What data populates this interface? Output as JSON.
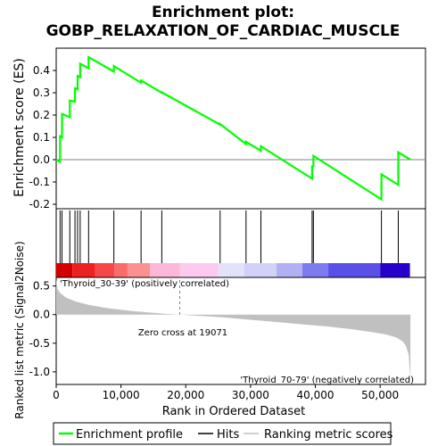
{
  "title": "Enrichment plot:\nGOBP_RELAXATION_OF_CARDIAC_MUSCLE",
  "title_lines": [
    "Enrichment plot:",
    "GOBP_RELAXATION_OF_CARDIAC_MUSCLE"
  ],
  "colors": {
    "es_line": "#00ff00",
    "hits": "#000000",
    "metric_fill": "#c0c0c0",
    "zero_line": "#808080",
    "pos_label": "#cc0000",
    "neg_label": "#0000cc"
  },
  "es_panel": {
    "ylabel": "Enrichment score (ES)",
    "ylim": [
      -0.22,
      0.5
    ],
    "yticks": [
      -0.2,
      -0.1,
      0.0,
      0.1,
      0.2,
      0.3,
      0.4
    ]
  },
  "metric_panel": {
    "ylabel": "Ranked list metric (Signal2Noise)",
    "ylim": [
      -1.22,
      0.65
    ],
    "yticks": [
      -1.0,
      -0.5,
      0.0,
      0.5
    ],
    "zero_cross_text": "Zero cross at 19071",
    "zero_cross": 19071,
    "pos_label": "'Thyroid_30-39' (positively correlated)",
    "neg_label": "'Thyroid_70-79' (negatively correlated)"
  },
  "xaxis": {
    "label": "Rank in Ordered Dataset",
    "xlim": [
      0,
      57000
    ],
    "ticks": [
      0,
      10000,
      20000,
      30000,
      40000,
      50000
    ],
    "tick_labels": [
      "0",
      "10,000",
      "20,000",
      "30,000",
      "40,000",
      "50,000"
    ]
  },
  "legend": {
    "items": [
      {
        "label": "Enrichment profile",
        "style": "green-line"
      },
      {
        "label": "Hits",
        "style": "black-line"
      },
      {
        "label": "Ranking metric scores",
        "style": "gray-line"
      }
    ]
  },
  "heatmap_bands": [
    {
      "start": 0,
      "end": 2500,
      "color": "#d40000"
    },
    {
      "start": 2500,
      "end": 6000,
      "color": "#ee2020"
    },
    {
      "start": 6000,
      "end": 9000,
      "color": "#f64848"
    },
    {
      "start": 9000,
      "end": 11000,
      "color": "#f86c6c"
    },
    {
      "start": 11000,
      "end": 14500,
      "color": "#fa9090"
    },
    {
      "start": 14500,
      "end": 19071,
      "color": "#fbb8d8"
    },
    {
      "start": 19071,
      "end": 25000,
      "color": "#fccaee"
    },
    {
      "start": 25000,
      "end": 29000,
      "color": "#e2e2f8"
    },
    {
      "start": 29000,
      "end": 34000,
      "color": "#d2d2f8"
    },
    {
      "start": 34000,
      "end": 38000,
      "color": "#b0b0f2"
    },
    {
      "start": 38000,
      "end": 42000,
      "color": "#7c7cf0"
    },
    {
      "start": 42000,
      "end": 50000,
      "color": "#5a50e8"
    },
    {
      "start": 50000,
      "end": 54600,
      "color": "#2800cc"
    }
  ],
  "chart_data": {
    "type": "line",
    "title": "Enrichment plot: GOBP_RELAXATION_OF_CARDIAC_MUSCLE",
    "xlabel": "Rank in Ordered Dataset",
    "ylabel": "Enrichment score (ES)",
    "n_genes": 54675,
    "hits": [
      600,
      900,
      2100,
      2900,
      3300,
      3700,
      5000,
      8900,
      13100,
      16300,
      25300,
      29300,
      31600,
      39500,
      39700,
      50200,
      52800
    ],
    "es_profile": {
      "x": [
        0,
        600,
        600,
        900,
        900,
        2100,
        2100,
        2900,
        2900,
        3300,
        3300,
        3700,
        3700,
        5000,
        5000,
        8900,
        8900,
        13100,
        13100,
        16300,
        16300,
        25300,
        25300,
        29300,
        29300,
        31600,
        31600,
        39500,
        39500,
        39700,
        39700,
        50200,
        50200,
        52800,
        52800,
        54675
      ],
      "y": [
        0.0,
        -0.01,
        0.105,
        0.1,
        0.205,
        0.19,
        0.265,
        0.26,
        0.32,
        0.315,
        0.375,
        0.37,
        0.43,
        0.41,
        0.46,
        0.395,
        0.42,
        0.345,
        0.355,
        0.3,
        0.302,
        0.157,
        0.16,
        0.07,
        0.08,
        0.04,
        0.06,
        -0.085,
        -0.03,
        -0.03,
        0.017,
        -0.178,
        -0.066,
        -0.113,
        0.033,
        0.0
      ]
    },
    "metric_profile": {
      "x": [
        0,
        200,
        600,
        1500,
        3000,
        5000,
        8000,
        12000,
        16000,
        19071,
        22000,
        26000,
        30000,
        34000,
        38000,
        42000,
        46000,
        49000,
        51000,
        52500,
        53500,
        54000,
        54400,
        54675
      ],
      "y": [
        0.62,
        0.45,
        0.38,
        0.3,
        0.23,
        0.17,
        0.11,
        0.06,
        0.02,
        0.0,
        -0.02,
        -0.05,
        -0.09,
        -0.13,
        -0.17,
        -0.21,
        -0.26,
        -0.31,
        -0.35,
        -0.4,
        -0.47,
        -0.55,
        -0.7,
        -1.15
      ]
    }
  }
}
